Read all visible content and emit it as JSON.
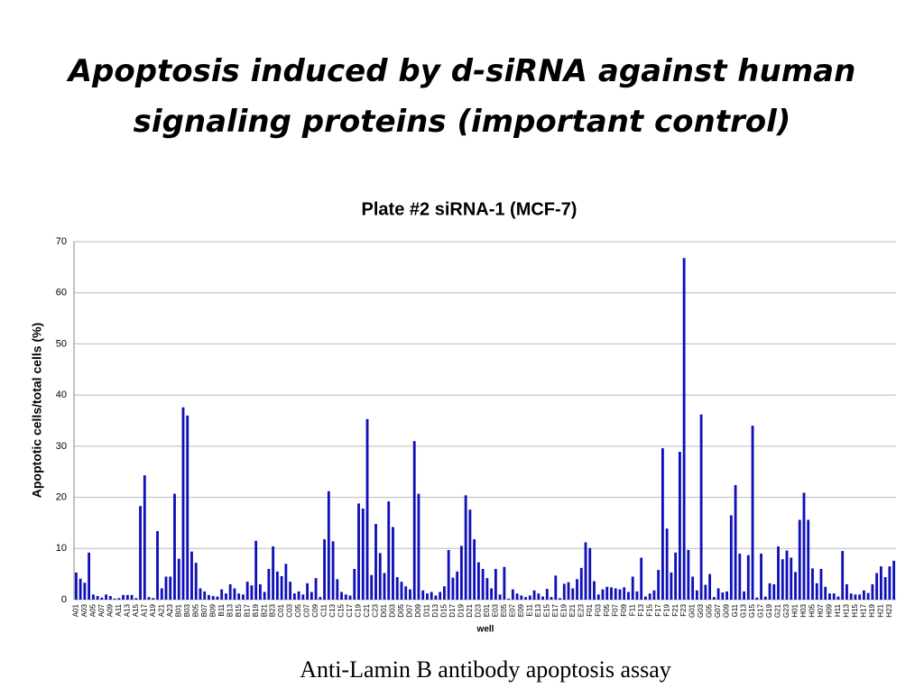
{
  "chart_data": {
    "type": "bar",
    "heading": "Apoptosis induced by d-siRNA against human signaling proteins (important control)",
    "title": "Plate #2 siRNA-1 (MCF-7)",
    "caption": "Anti-Lamin B antibody apoptosis assay",
    "y_label": "Apoptotic cells/total cells (%)",
    "x_label": "well",
    "color": "#1010b8",
    "grid": true,
    "ylim": [
      0,
      70
    ],
    "yticks": [
      0,
      10,
      20,
      30,
      40,
      50,
      60,
      70
    ],
    "categories": [
      "A01",
      null,
      "A03",
      null,
      "A05",
      null,
      "A07",
      null,
      "A09",
      null,
      "A11",
      null,
      "A13",
      null,
      "A15",
      null,
      "A17",
      null,
      "A19",
      null,
      "A21",
      null,
      "A23",
      null,
      "B01",
      null,
      "B03",
      null,
      "B05",
      null,
      "B07",
      null,
      "B09",
      null,
      "B11",
      null,
      "B13",
      null,
      "B15",
      null,
      "B17",
      null,
      "B19",
      null,
      "B21",
      null,
      "B23",
      null,
      "C01",
      null,
      "C03",
      null,
      "C05",
      null,
      "C07",
      null,
      "C09",
      null,
      "C11",
      null,
      "C13",
      null,
      "C15",
      null,
      "C17",
      null,
      "C19",
      null,
      "C21",
      null,
      "C23",
      null,
      "D01",
      null,
      "D03",
      null,
      "D05",
      null,
      "D07",
      null,
      "D09",
      null,
      "D11",
      null,
      "D13",
      null,
      "D15",
      null,
      "D17",
      null,
      "D19",
      null,
      "D21",
      null,
      "D23",
      null,
      "E01",
      null,
      "E03",
      null,
      "E05",
      null,
      "E07",
      null,
      "E09",
      null,
      "E11",
      null,
      "E13",
      null,
      "E15",
      null,
      "E17",
      null,
      "E19",
      null,
      "E21",
      null,
      "E23",
      null,
      "F01",
      null,
      "F03",
      null,
      "F05",
      null,
      "F07",
      null,
      "F09",
      null,
      "F11",
      null,
      "F13",
      null,
      "F15",
      null,
      "F17",
      null,
      "F19",
      null,
      "F21",
      null,
      "F23",
      null,
      "G01",
      null,
      "G03",
      null,
      "G05",
      null,
      "G07",
      null,
      "G09",
      null,
      "G11",
      null,
      "G13",
      null,
      "G15",
      null,
      "G17",
      null,
      "G19",
      null,
      "G21",
      null,
      "G23",
      null,
      "H01",
      null,
      "H03",
      null,
      "H05",
      null,
      "H07",
      null,
      "H09",
      null,
      "H11",
      null,
      "H13",
      null,
      "H15",
      null,
      "H17",
      null,
      "H19",
      null,
      "H21",
      null,
      "H23",
      null
    ],
    "values": [
      5.3,
      4.1,
      3.3,
      9.2,
      1.0,
      0.7,
      0.4,
      1.0,
      0.7,
      0.2,
      0.3,
      0.9,
      0.9,
      0.9,
      0.3,
      18.3,
      24.3,
      0.5,
      0.3,
      13.4,
      2.2,
      4.5,
      4.5,
      20.7,
      8.0,
      37.6,
      36.0,
      9.4,
      7.2,
      2.2,
      1.6,
      0.9,
      0.7,
      0.6,
      2.0,
      1.2,
      3.0,
      2.2,
      1.2,
      1.0,
      3.5,
      2.8,
      11.5,
      3.0,
      1.5,
      6.0,
      10.4,
      5.5,
      4.6,
      7.0,
      3.5,
      1.2,
      1.6,
      1.0,
      3.2,
      1.5,
      4.2,
      0.5,
      11.8,
      21.2,
      11.4,
      4.0,
      1.5,
      1.0,
      0.8,
      6.0,
      18.8,
      17.8,
      35.3,
      4.8,
      14.8,
      9.1,
      5.2,
      19.2,
      14.2,
      4.4,
      3.5,
      2.6,
      2.0,
      31.0,
      20.7,
      1.8,
      1.2,
      1.5,
      0.8,
      1.5,
      2.6,
      9.7,
      4.3,
      5.5,
      10.5,
      20.4,
      17.6,
      11.8,
      7.3,
      6.0,
      4.2,
      2.2,
      6.0,
      1.0,
      6.4,
      0.2,
      2.0,
      1.2,
      0.8,
      0.5,
      0.8,
      1.8,
      1.2,
      0.6,
      2.1,
      0.5,
      4.7,
      0.3,
      3.1,
      3.4,
      2.2,
      4.0,
      6.2,
      11.2,
      10.1,
      3.6,
      1.0,
      2.0,
      2.5,
      2.4,
      2.2,
      2.0,
      2.4,
      1.5,
      4.5,
      1.6,
      8.2,
      0.6,
      1.2,
      1.8,
      5.8,
      29.6,
      13.9,
      5.3,
      9.2,
      28.9,
      66.8,
      9.7,
      4.5,
      1.8,
      36.2,
      2.9,
      5.0,
      0.5,
      2.2,
      1.4,
      1.6,
      16.5,
      22.4,
      9.0,
      1.6,
      8.7,
      34.0,
      0.4,
      9.0,
      0.6,
      3.2,
      3.0,
      10.4,
      7.9,
      9.6,
      8.2,
      5.4,
      15.6,
      20.9,
      15.6,
      6.1,
      3.2,
      6.0,
      2.5,
      1.2,
      1.2,
      0.6,
      9.5,
      3.0,
      1.2,
      1.0,
      1.0,
      1.8,
      1.3,
      3.0,
      5.2,
      6.5,
      4.4,
      6.5,
      7.6
    ]
  }
}
